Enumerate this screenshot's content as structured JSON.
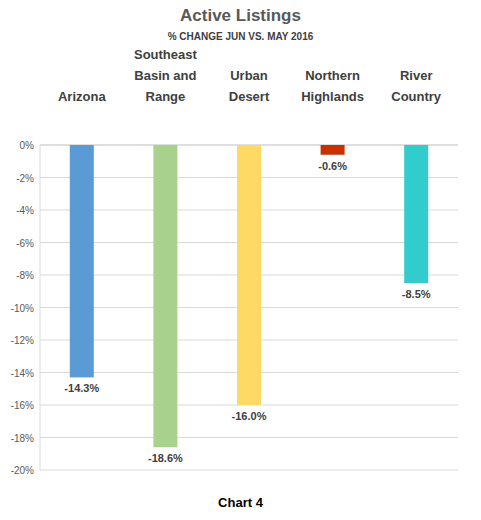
{
  "chart_data": {
    "type": "bar",
    "title": "Active Listings",
    "subtitle": "% CHANGE JUN VS. MAY 2016",
    "categories": [
      "Arizona",
      "Southeast Basin and Range",
      "Urban Desert",
      "Northern Highlands",
      "River Country"
    ],
    "values": [
      -14.3,
      -18.6,
      -16.0,
      -0.6,
      -8.5
    ],
    "value_labels": [
      "-14.3%",
      "-18.6%",
      "-16.0%",
      "-0.6%",
      "-8.5%"
    ],
    "colors": [
      "#5b9bd5",
      "#a9d18e",
      "#ffd966",
      "#c93100",
      "#33cccc"
    ],
    "ylim": [
      -20,
      0
    ],
    "yticks": [
      {
        "value": 0,
        "label": "0%"
      },
      {
        "value": -2,
        "label": "-2%"
      },
      {
        "value": -4,
        "label": "-4%"
      },
      {
        "value": -6,
        "label": "-6%"
      },
      {
        "value": -8,
        "label": "-8%"
      },
      {
        "value": -10,
        "label": "-10%"
      },
      {
        "value": -12,
        "label": "-12%"
      },
      {
        "value": -14,
        "label": "-14%"
      },
      {
        "value": -16,
        "label": "-16%"
      },
      {
        "value": -18,
        "label": "-18%"
      },
      {
        "value": -20,
        "label": "-20%"
      }
    ],
    "grid": true,
    "data_labels": true,
    "annotations": [
      "Chart 4"
    ]
  }
}
